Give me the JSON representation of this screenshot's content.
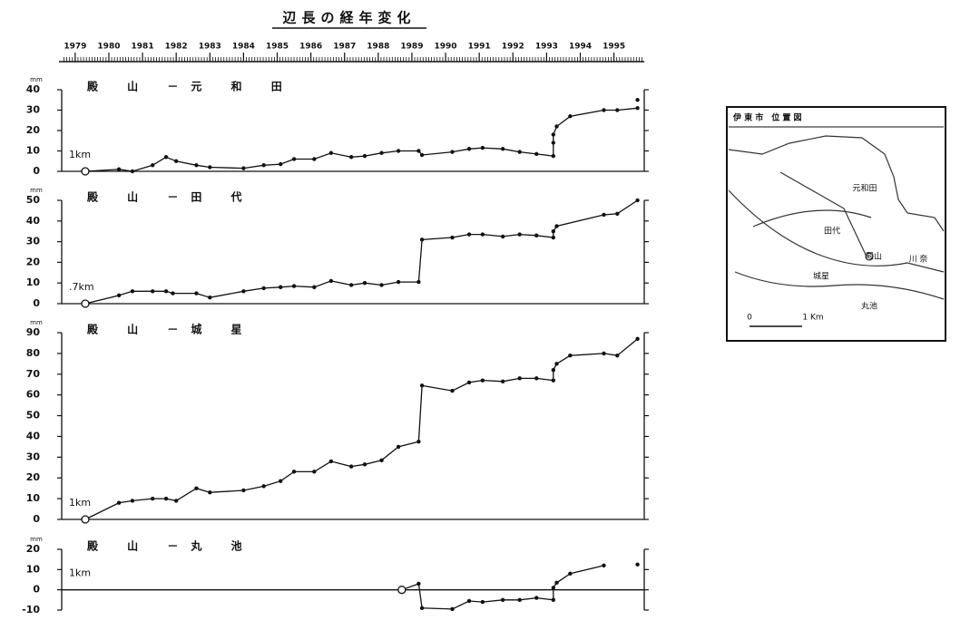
{
  "title": "辺長の経年変化",
  "chart_data": [
    {
      "type": "line",
      "title": "殿 山 －元 和 田",
      "annotation": "1km",
      "y_unit": "mm",
      "color": "#111111",
      "xlim": [
        1978.6,
        1995.9
      ],
      "xticks": [
        1979,
        1980,
        1981,
        1982,
        1983,
        1984,
        1985,
        1986,
        1987,
        1988,
        1989,
        1990,
        1991,
        1992,
        1993,
        1994,
        1995
      ],
      "x": [
        1979.3,
        1980.3,
        1980.7,
        1981.3,
        1981.7,
        1982.0,
        1982.6,
        1983.0,
        1984.0,
        1984.6,
        1985.1,
        1985.5,
        1986.1,
        1986.6,
        1987.2,
        1987.6,
        1988.1,
        1988.6,
        1989.2,
        1989.3,
        1990.2,
        1990.7,
        1991.1,
        1991.7,
        1992.2,
        1992.7,
        1993.2,
        1993.2,
        1993.2,
        1993.3,
        1993.7,
        1994.7,
        1995.1,
        1995.7,
        1995.7,
        1995.7
      ],
      "values": [
        0,
        1,
        0,
        3,
        7,
        5,
        3,
        2,
        1.5,
        3,
        3.5,
        6,
        6,
        9,
        7,
        7.5,
        9,
        10,
        10,
        8,
        9.5,
        11,
        11.5,
        11,
        9.5,
        8.5,
        7.5,
        14,
        18,
        22,
        27,
        30,
        30,
        31,
        null,
        35
      ],
      "ylim": [
        0,
        40
      ],
      "yticks": [
        0,
        10,
        20,
        30,
        40
      ]
    },
    {
      "type": "line",
      "title": "殿 山 －田 代",
      "annotation": ".7km",
      "y_unit": "mm",
      "color": "#111111",
      "xlim": [
        1978.6,
        1995.9
      ],
      "x": [
        1979.3,
        1980.3,
        1980.7,
        1981.3,
        1981.7,
        1981.9,
        1982.6,
        1983.0,
        1984.0,
        1984.6,
        1985.1,
        1985.5,
        1986.1,
        1986.6,
        1987.2,
        1987.6,
        1988.1,
        1988.6,
        1989.2,
        1989.3,
        1990.2,
        1990.7,
        1991.1,
        1991.7,
        1992.2,
        1992.7,
        1993.2,
        1993.2,
        1993.3,
        1994.7,
        1995.1,
        1995.7
      ],
      "values": [
        0,
        4,
        6,
        6,
        6,
        5,
        5,
        3,
        6,
        7.5,
        8,
        8.5,
        8,
        11,
        9,
        10,
        9,
        10.5,
        10.5,
        31,
        32,
        33.5,
        33.5,
        32.5,
        33.5,
        33,
        32,
        35,
        37.5,
        43,
        43.5,
        50
      ],
      "ylim": [
        0,
        50
      ],
      "yticks": [
        0,
        10,
        20,
        30,
        40,
        50
      ]
    },
    {
      "type": "line",
      "title": "殿 山 －城 星",
      "annotation": "1km",
      "y_unit": "mm",
      "color": "#111111",
      "xlim": [
        1978.6,
        1995.9
      ],
      "x": [
        1979.3,
        1980.3,
        1980.7,
        1981.3,
        1981.7,
        1982.0,
        1982.6,
        1983.0,
        1984.0,
        1984.6,
        1985.1,
        1985.5,
        1986.1,
        1986.6,
        1987.2,
        1987.6,
        1988.1,
        1988.6,
        1989.2,
        1989.3,
        1990.2,
        1990.7,
        1991.1,
        1991.7,
        1992.2,
        1992.7,
        1993.2,
        1993.2,
        1993.3,
        1993.7,
        1994.7,
        1995.1,
        1995.7
      ],
      "values": [
        0,
        8,
        9,
        10,
        10,
        9,
        15,
        13,
        14,
        16,
        18.5,
        23,
        23,
        28,
        25.5,
        26.5,
        28.5,
        35,
        37.5,
        64.5,
        62,
        66,
        67,
        66.5,
        68,
        68,
        67,
        72,
        75,
        79,
        80,
        79,
        87
      ],
      "ylim": [
        0,
        90
      ],
      "yticks": [
        0,
        10,
        20,
        30,
        40,
        50,
        60,
        70,
        80,
        90
      ]
    },
    {
      "type": "line",
      "title": "殿 山 －丸 池",
      "annotation": "1km",
      "y_unit": "mm",
      "color": "#111111",
      "xlim": [
        1978.6,
        1995.9
      ],
      "x": [
        1988.7,
        1989.2,
        1989.3,
        1990.2,
        1990.7,
        1991.1,
        1991.7,
        1992.2,
        1992.7,
        1993.2,
        1993.2,
        1993.3,
        1993.7,
        1994.7,
        1995.7,
        1995.7
      ],
      "values": [
        0,
        3,
        -9,
        -9.5,
        -5.5,
        -6,
        -5,
        -5,
        -4,
        -5,
        1,
        3.5,
        8,
        12,
        null,
        12.5
      ],
      "ylim": [
        -10,
        20
      ],
      "yticks": [
        -10,
        0,
        10,
        20
      ]
    }
  ],
  "map": {
    "title": "伊 東 市　位 置 図",
    "labels": [
      "元和田",
      "田代",
      "殿山",
      "城星",
      "丸池",
      "川 奈"
    ],
    "scale_start": "0",
    "scale_end": "1 Km"
  }
}
